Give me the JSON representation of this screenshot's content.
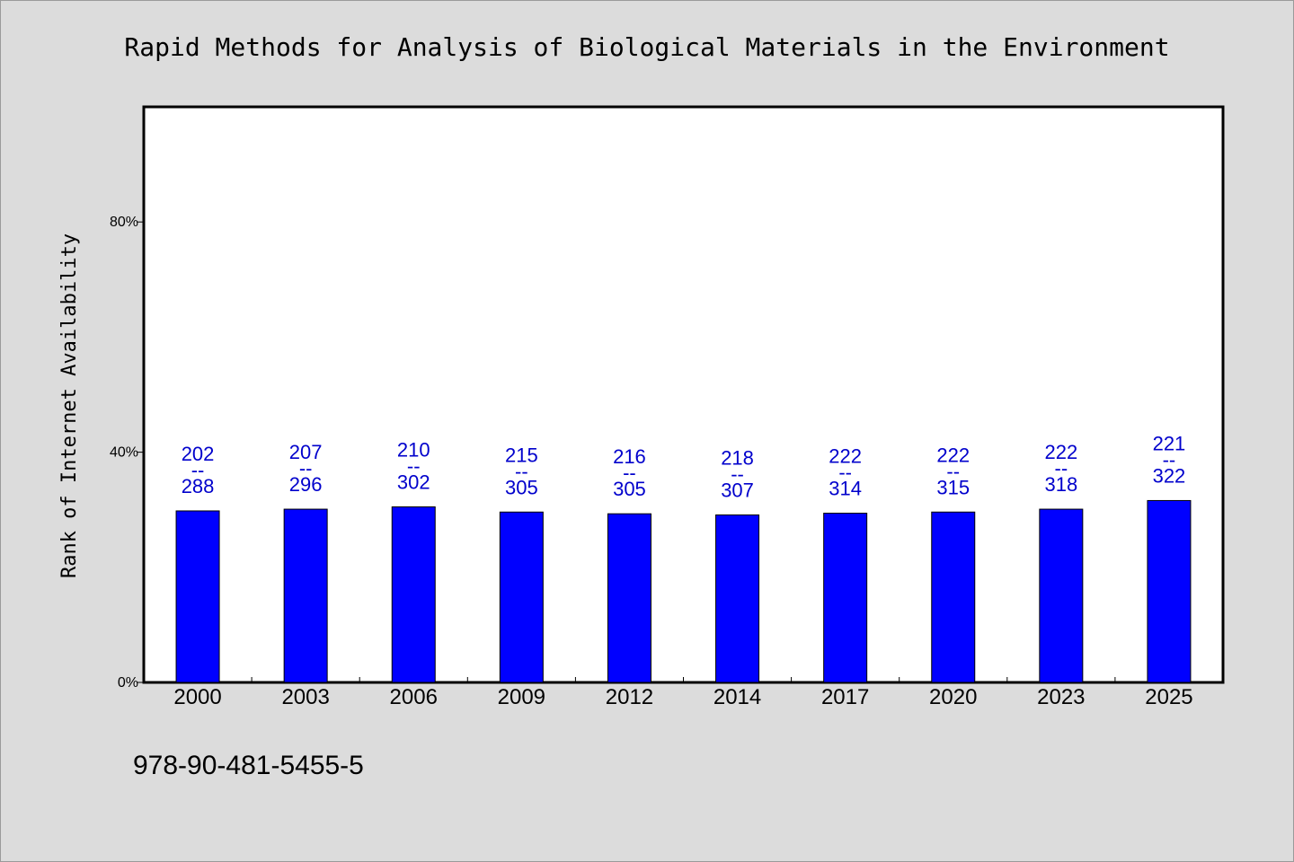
{
  "colors": {
    "background": "#dcdcdc",
    "plot_background": "#ffffff",
    "bar_fill": "#0000ff",
    "bar_label": "#0000cc"
  },
  "footer": {
    "isbn": "978-90-481-5455-5"
  },
  "chart_data": {
    "type": "bar",
    "title": "Rapid Methods for Analysis of Biological Materials in the Environment",
    "xlabel": "",
    "ylabel": "Rank of Internet Availability",
    "ylim": [
      0,
      100
    ],
    "yticks": [
      0,
      40,
      80
    ],
    "ytick_labels": [
      "0%",
      "40%",
      "80%"
    ],
    "grid": false,
    "categories": [
      "2000",
      "2003",
      "2006",
      "2009",
      "2012",
      "2014",
      "2017",
      "2020",
      "2023",
      "2025"
    ],
    "values": [
      29.8,
      30.1,
      30.5,
      29.6,
      29.3,
      29.1,
      29.4,
      29.6,
      30.1,
      31.6
    ],
    "bar_labels": [
      {
        "top": "202",
        "sep": "--",
        "bottom": "288"
      },
      {
        "top": "207",
        "sep": "--",
        "bottom": "296"
      },
      {
        "top": "210",
        "sep": "--",
        "bottom": "302"
      },
      {
        "top": "215",
        "sep": "--",
        "bottom": "305"
      },
      {
        "top": "216",
        "sep": "--",
        "bottom": "305"
      },
      {
        "top": "218",
        "sep": "--",
        "bottom": "307"
      },
      {
        "top": "222",
        "sep": "--",
        "bottom": "314"
      },
      {
        "top": "222",
        "sep": "--",
        "bottom": "315"
      },
      {
        "top": "222",
        "sep": "--",
        "bottom": "318"
      },
      {
        "top": "221",
        "sep": "--",
        "bottom": "322"
      }
    ]
  }
}
